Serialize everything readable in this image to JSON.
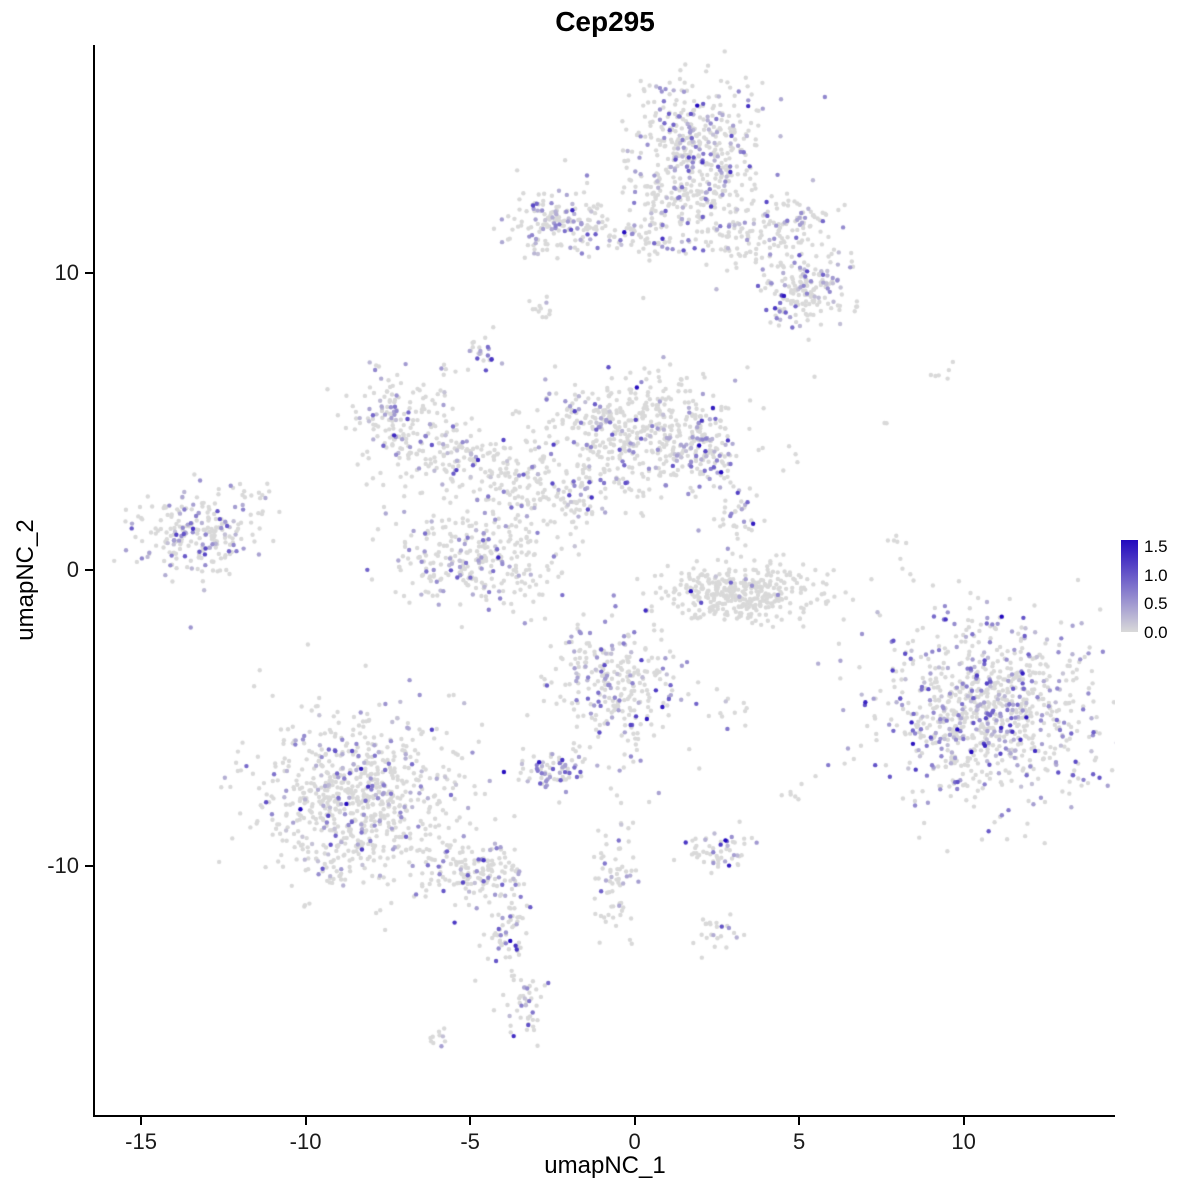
{
  "chart_data": {
    "type": "scatter",
    "title": "Cep295",
    "xlabel": "umapNC_1",
    "ylabel": "umapNC_2",
    "xlim": [
      -16.4,
      14.6
    ],
    "ylim": [
      -18.4,
      17.7
    ],
    "x_ticks": [
      "-15",
      "-10",
      "-5",
      "0",
      "5",
      "10"
    ],
    "y_ticks": [
      "10",
      "0",
      "-10"
    ],
    "grid": false,
    "background": "#ffffff",
    "point_radius": 2.2,
    "seed": 1337,
    "colors": {
      "low": "#D9D9D9",
      "high": "#2209BE",
      "axis": "#000000"
    },
    "legend": {
      "position": "right",
      "vmax": 1.6,
      "tick_labels": [
        "1.5",
        "1.0",
        "0.5",
        "0.0"
      ],
      "tick_values": [
        1.5,
        1.0,
        0.5,
        0.0
      ],
      "low_color": "#D9D9D9",
      "high_color": "#2209BE"
    },
    "clusters": [
      {
        "name": "top-main",
        "x": 1.9,
        "y": 14.2,
        "sdx": 1.1,
        "sdy": 1.2,
        "n": 420,
        "expr_frac": 0.22
      },
      {
        "name": "top-fringe",
        "x": 1.3,
        "y": 12.3,
        "sdx": 0.8,
        "sdy": 0.6,
        "n": 110,
        "expr_frac": 0.15
      },
      {
        "name": "top-right-arm",
        "x": 4.3,
        "y": 11.3,
        "sdx": 1.0,
        "sdy": 0.7,
        "n": 180,
        "expr_frac": 0.15
      },
      {
        "name": "top-right-lobe",
        "x": 5.2,
        "y": 9.4,
        "sdx": 0.7,
        "sdy": 0.6,
        "n": 160,
        "expr_frac": 0.22
      },
      {
        "name": "upper-left-blob",
        "x": -2.4,
        "y": 11.7,
        "sdx": 0.85,
        "sdy": 0.55,
        "n": 170,
        "expr_frac": 0.28
      },
      {
        "name": "top-connector",
        "x": 0.0,
        "y": 11.2,
        "sdx": 0.7,
        "sdy": 0.35,
        "n": 50,
        "expr_frac": 0.15
      },
      {
        "name": "small-satellite-a",
        "x": -2.8,
        "y": 8.7,
        "sdx": 0.2,
        "sdy": 0.25,
        "n": 12,
        "expr_frac": 0.1
      },
      {
        "name": "small-satellite-b",
        "x": -4.6,
        "y": 7.3,
        "sdx": 0.3,
        "sdy": 0.35,
        "n": 25,
        "expr_frac": 0.3
      },
      {
        "name": "mid-left",
        "x": -7.1,
        "y": 4.9,
        "sdx": 0.85,
        "sdy": 1.0,
        "n": 190,
        "expr_frac": 0.25
      },
      {
        "name": "mid-left-arm",
        "x": -5.1,
        "y": 3.6,
        "sdx": 0.9,
        "sdy": 0.5,
        "n": 110,
        "expr_frac": 0.2
      },
      {
        "name": "central",
        "x": 0.1,
        "y": 4.6,
        "sdx": 1.6,
        "sdy": 1.0,
        "n": 520,
        "expr_frac": 0.18
      },
      {
        "name": "central-right-lobe",
        "x": 2.2,
        "y": 3.9,
        "sdx": 0.5,
        "sdy": 0.7,
        "n": 90,
        "expr_frac": 0.35
      },
      {
        "name": "central-connector-a",
        "x": -3.3,
        "y": 2.6,
        "sdx": 0.8,
        "sdy": 0.7,
        "n": 90,
        "expr_frac": 0.15
      },
      {
        "name": "central-connector-b",
        "x": -1.7,
        "y": 2.4,
        "sdx": 0.6,
        "sdy": 0.6,
        "n": 60,
        "expr_frac": 0.18
      },
      {
        "name": "lower-arc",
        "x": -4.9,
        "y": 0.4,
        "sdx": 1.3,
        "sdy": 0.8,
        "n": 300,
        "expr_frac": 0.25
      },
      {
        "name": "far-left",
        "x": -13.3,
        "y": 1.2,
        "sdx": 1.0,
        "sdy": 0.75,
        "n": 230,
        "expr_frac": 0.3
      },
      {
        "name": "far-left-satellite",
        "x": -11.4,
        "y": 2.6,
        "sdx": 0.3,
        "sdy": 0.3,
        "n": 12,
        "expr_frac": 0.1
      },
      {
        "name": "crescent",
        "x": 3.2,
        "y": -0.8,
        "sdx": 1.2,
        "sdy": 0.45,
        "n": 380,
        "expr_frac": 0.04
      },
      {
        "name": "crescent-satellite",
        "x": 3.1,
        "y": 1.6,
        "sdx": 0.35,
        "sdy": 0.5,
        "n": 35,
        "expr_frac": 0.3
      },
      {
        "name": "center-bottom",
        "x": -0.5,
        "y": -3.9,
        "sdx": 1.0,
        "sdy": 1.1,
        "n": 290,
        "expr_frac": 0.28
      },
      {
        "name": "center-bottom-satellite",
        "x": -2.4,
        "y": -6.8,
        "sdx": 0.5,
        "sdy": 0.35,
        "n": 70,
        "expr_frac": 0.35
      },
      {
        "name": "right-main",
        "x": 10.6,
        "y": -4.8,
        "sdx": 1.7,
        "sdy": 1.5,
        "n": 900,
        "expr_frac": 0.32,
        "expr_scale": 1.1
      },
      {
        "name": "bottom-left",
        "x": -8.4,
        "y": -7.8,
        "sdx": 1.6,
        "sdy": 1.5,
        "n": 780,
        "expr_frac": 0.18
      },
      {
        "name": "tail-1",
        "x": -4.9,
        "y": -10.2,
        "sdx": 0.8,
        "sdy": 0.6,
        "n": 150,
        "expr_frac": 0.22
      },
      {
        "name": "tail-2",
        "x": -3.9,
        "y": -12.2,
        "sdx": 0.35,
        "sdy": 0.8,
        "n": 60,
        "expr_frac": 0.2
      },
      {
        "name": "tail-3",
        "x": -3.4,
        "y": -14.8,
        "sdx": 0.3,
        "sdy": 0.7,
        "n": 45,
        "expr_frac": 0.3
      },
      {
        "name": "tail-tip",
        "x": -6.1,
        "y": -15.9,
        "sdx": 0.25,
        "sdy": 0.15,
        "n": 10,
        "expr_frac": 0.3
      },
      {
        "name": "center-trail",
        "x": -0.6,
        "y": -10.5,
        "sdx": 0.35,
        "sdy": 1.3,
        "n": 70,
        "expr_frac": 0.2
      },
      {
        "name": "right-small-a",
        "x": 2.4,
        "y": -9.5,
        "sdx": 0.55,
        "sdy": 0.35,
        "n": 55,
        "expr_frac": 0.35
      },
      {
        "name": "right-small-b",
        "x": 2.5,
        "y": -12.4,
        "sdx": 0.3,
        "sdy": 0.3,
        "n": 25,
        "expr_frac": 0.3
      },
      {
        "name": "sparse-a",
        "x": 8.0,
        "y": 0.6,
        "sdx": 0.25,
        "sdy": 0.5,
        "n": 7,
        "expr_frac": 0.0
      },
      {
        "name": "sparse-b",
        "x": 9.4,
        "y": 6.7,
        "sdx": 0.3,
        "sdy": 0.2,
        "n": 6,
        "expr_frac": 0.0
      },
      {
        "name": "sparse-purple",
        "x": 7.7,
        "y": 4.9,
        "sdx": 0.1,
        "sdy": 0.1,
        "n": 2,
        "expr_frac": 0.6
      },
      {
        "name": "sparse-c",
        "x": 5.0,
        "y": -7.4,
        "sdx": 0.3,
        "sdy": 0.3,
        "n": 7,
        "expr_frac": 0.1
      },
      {
        "name": "sparse-d",
        "x": 3.0,
        "y": -4.6,
        "sdx": 0.4,
        "sdy": 0.3,
        "n": 12,
        "expr_frac": 0.1
      }
    ]
  }
}
